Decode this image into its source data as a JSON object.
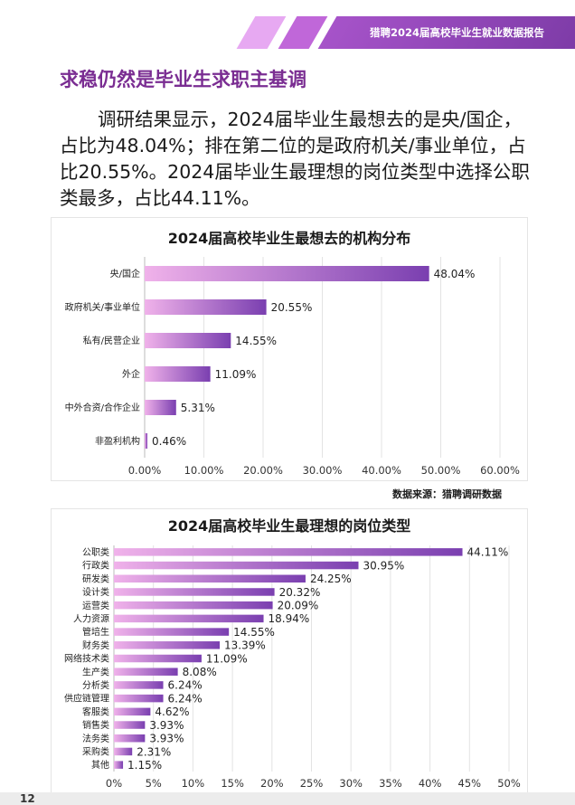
{
  "header": {
    "report_title": "猎聘2024届高校毕业生就业数据报告",
    "colors": {
      "stripe_light": "#e7a9f2",
      "stripe_mid": "#c067d9",
      "stripe_dark": "#7b3aa5"
    }
  },
  "headline": "求稳仍然是毕业生求职主基调",
  "paragraph": "调研结果显示，2024届毕业生最想去的是央/国企，占比为48.04%；排在第二位的是政府机关/事业单位，占比20.55%。2024届毕业生最理想的岗位类型中选择公职类最多，占比44.11%。",
  "sources": {
    "chart1": "数据来源：猎聘调研数据",
    "chart2": "数据来源：猎聘调研数据"
  },
  "page": {
    "number": "12"
  },
  "chart_data": [
    {
      "type": "bar",
      "orientation": "horizontal",
      "title": "2024届高校毕业生最想去的机构分布",
      "categories": [
        "央/国企",
        "政府机关/事业单位",
        "私有/民营企业",
        "外企",
        "中外合资/合作企业",
        "非盈利机构"
      ],
      "values": [
        48.04,
        20.55,
        14.55,
        11.09,
        5.31,
        0.46
      ],
      "value_labels": [
        "48.04%",
        "20.55%",
        "14.55%",
        "11.09%",
        "5.31%",
        "0.46%"
      ],
      "xlim": [
        0,
        60
      ],
      "ticks": [
        0,
        10,
        20,
        30,
        40,
        50,
        60
      ],
      "tick_labels": [
        "0.00%",
        "10.00%",
        "20.00%",
        "30.00%",
        "40.00%",
        "50.00%",
        "60.00%"
      ],
      "grid": true,
      "gradient": [
        "#f0b2ea",
        "#7a3fb0"
      ]
    },
    {
      "type": "bar",
      "orientation": "horizontal",
      "title": "2024届高校毕业生最理想的岗位类型",
      "categories": [
        "公职类",
        "行政类",
        "研发类",
        "设计类",
        "运营类",
        "人力资源",
        "管培生",
        "财务类",
        "网络技术类",
        "生产类",
        "分析类",
        "供应链管理",
        "客服类",
        "销售类",
        "法务类",
        "采购类",
        "其他"
      ],
      "values": [
        44.11,
        30.95,
        24.25,
        20.32,
        20.09,
        18.94,
        14.55,
        13.39,
        11.09,
        8.08,
        6.24,
        6.24,
        4.62,
        3.93,
        3.93,
        2.31,
        1.15
      ],
      "value_labels": [
        "44.11%",
        "30.95%",
        "24.25%",
        "20.32%",
        "20.09%",
        "18.94%",
        "14.55%",
        "13.39%",
        "11.09%",
        "8.08%",
        "6.24%",
        "6.24%",
        "4.62%",
        "3.93%",
        "3.93%",
        "2.31%",
        "1.15%"
      ],
      "xlim": [
        0,
        50
      ],
      "ticks": [
        0,
        5,
        10,
        15,
        20,
        25,
        30,
        35,
        40,
        45,
        50
      ],
      "tick_labels": [
        "0%",
        "5%",
        "10%",
        "15%",
        "20%",
        "25%",
        "30%",
        "35%",
        "40%",
        "45%",
        "50%"
      ],
      "grid": true,
      "gradient": [
        "#f0b2ea",
        "#7a3fb0"
      ]
    }
  ]
}
